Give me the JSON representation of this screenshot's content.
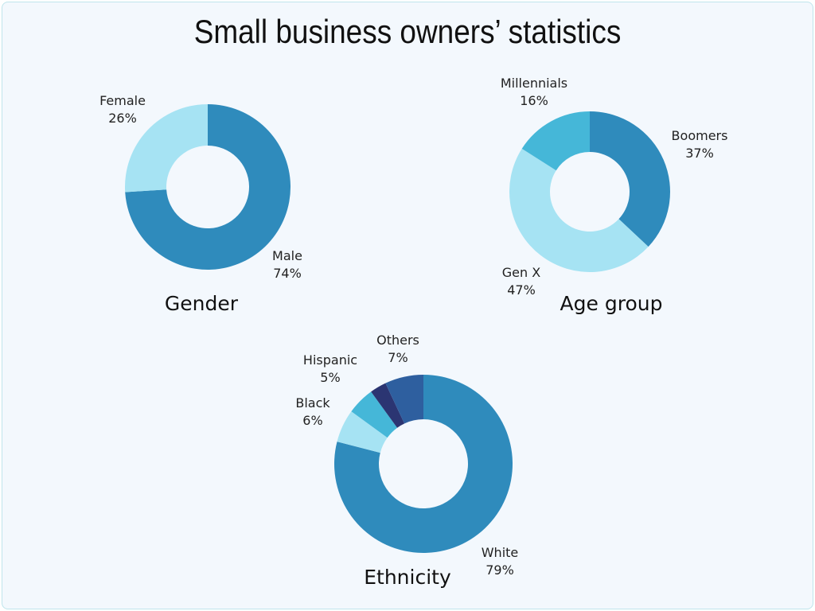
{
  "title": "Small business owners’ statistics",
  "chart_data": [
    {
      "type": "pie",
      "title": "Gender",
      "donut": true,
      "slices": [
        {
          "name": "Male",
          "value": 74,
          "label": "74%",
          "color": "#2f8bbc"
        },
        {
          "name": "Female",
          "value": 26,
          "label": "26%",
          "color": "#a6e3f3"
        }
      ]
    },
    {
      "type": "pie",
      "title": "Age group",
      "donut": true,
      "slices": [
        {
          "name": "Boomers",
          "value": 37,
          "label": "37%",
          "color": "#2f8bbc"
        },
        {
          "name": "Gen X",
          "value": 47,
          "label": "47%",
          "color": "#a6e3f3"
        },
        {
          "name": "Millennials",
          "value": 16,
          "label": "16%",
          "color": "#45b7d8"
        }
      ]
    },
    {
      "type": "pie",
      "title": "Ethnicity",
      "donut": true,
      "slices": [
        {
          "name": "White",
          "value": 79,
          "label": "79%",
          "color": "#2f8bbc"
        },
        {
          "name": "Black",
          "value": 6,
          "label": "6%",
          "color": "#a6e3f3"
        },
        {
          "name": "Hispanic",
          "value": 5,
          "label": "5%",
          "color": "#45b7d8"
        },
        {
          "name": "",
          "value": 3,
          "label": "",
          "color": "#2b3572"
        },
        {
          "name": "Others",
          "value": 7,
          "label": "7%",
          "color": "#2e5f9f"
        }
      ]
    }
  ]
}
